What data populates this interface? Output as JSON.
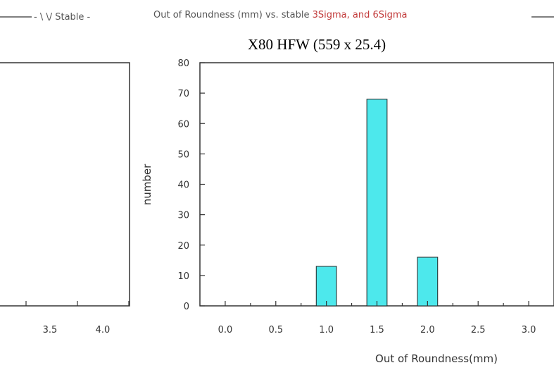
{
  "header": {
    "left_text": "- \\ \\/ Stable -",
    "main_text": "Out of Roundness (mm) vs. stable ",
    "main_text_red": "3Sigma, and 6Sigma",
    "tail_text": "",
    "line_color": "#333333"
  },
  "left_chart": {
    "x_tick_labels": [
      "3.5",
      "4.0"
    ]
  },
  "chart_data": {
    "type": "bar",
    "title": "X80 HFW (559 x 25.4)",
    "xlabel": "Out of Roundness(mm)",
    "ylabel": "number",
    "categories": [
      "0.0",
      "0.5",
      "1.0",
      "1.5",
      "2.0",
      "2.5",
      "3.0"
    ],
    "bars": [
      {
        "x": 1.0,
        "value": 13
      },
      {
        "x": 1.5,
        "value": 68
      },
      {
        "x": 2.0,
        "value": 16
      }
    ],
    "x_ticks": [
      0.0,
      0.5,
      1.0,
      1.5,
      2.0,
      2.5,
      3.0
    ],
    "y_ticks": [
      0,
      10,
      20,
      30,
      40,
      50,
      60,
      70,
      80
    ],
    "x_tick_labels": [
      "0.0",
      "0.5",
      "1.0",
      "1.5",
      "2.0",
      "2.5",
      "3.0"
    ],
    "y_tick_labels": [
      "0",
      "10",
      "20",
      "30",
      "40",
      "50",
      "60",
      "70",
      "80"
    ],
    "xlim": [
      -0.25,
      3.25
    ],
    "ylim": [
      0,
      80
    ],
    "grid": false,
    "bar_color": "#4de8ec"
  }
}
